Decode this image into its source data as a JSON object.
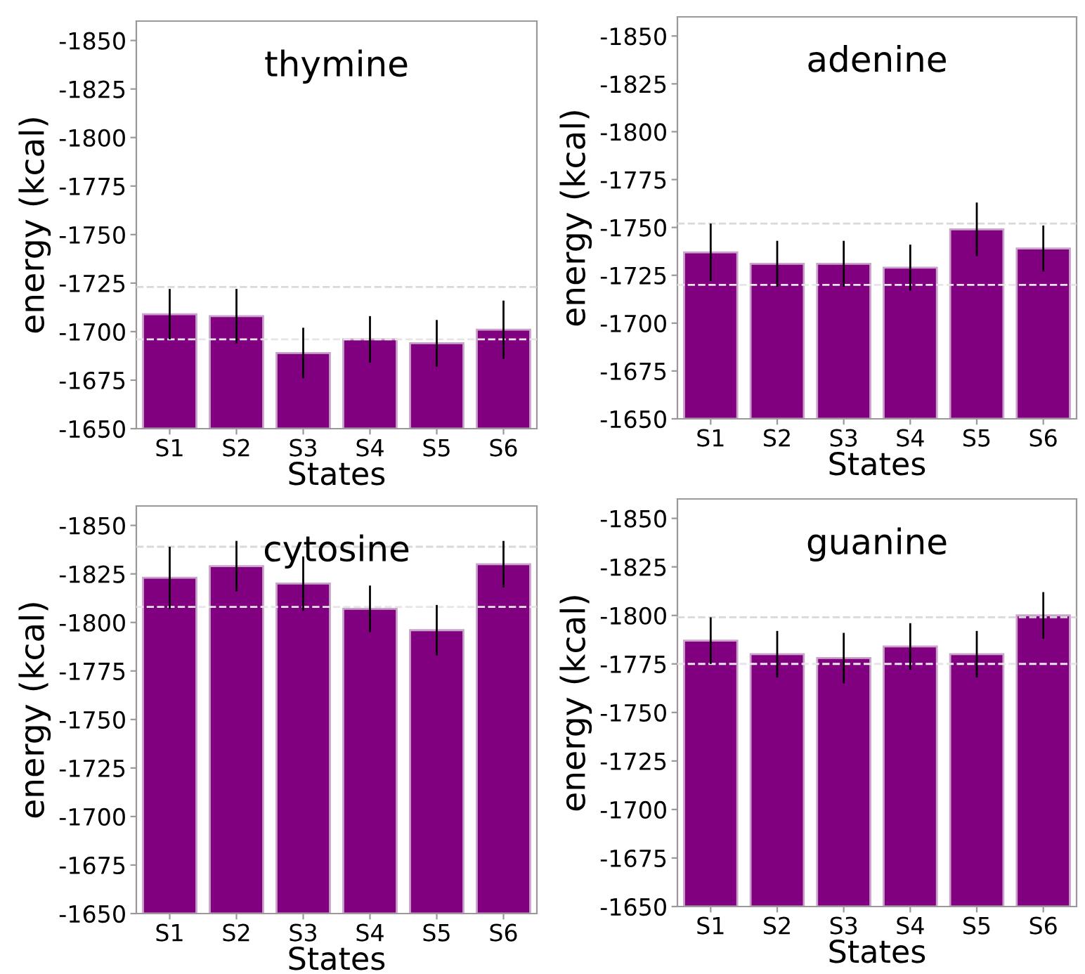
{
  "chart_data": [
    {
      "type": "bar",
      "title": "thymine",
      "xlabel": "States",
      "ylabel": "energy (kcal)",
      "categories": [
        "S1",
        "S2",
        "S3",
        "S4",
        "S5",
        "S6"
      ],
      "color": "#800080",
      "values": [
        -1709,
        -1708,
        -1689,
        -1696,
        -1694,
        -1701
      ],
      "errors": [
        13,
        14,
        13,
        12,
        12,
        15
      ],
      "ylim": [
        -1650,
        -1860
      ],
      "yticks": [
        -1650,
        -1675,
        -1700,
        -1725,
        -1750,
        -1775,
        -1800,
        -1825,
        -1850
      ],
      "ref_lines": [
        {
          "axis": "y",
          "value": -1723,
          "color": "#d9d9d9",
          "line_style": "dashed"
        },
        {
          "axis": "y",
          "value": -1696,
          "color": "#e6e6e6",
          "line_style": "dashed"
        }
      ]
    },
    {
      "type": "bar",
      "title": "adenine",
      "xlabel": "States",
      "ylabel": "energy (kcal)",
      "categories": [
        "S1",
        "S2",
        "S3",
        "S4",
        "S5",
        "S6"
      ],
      "color": "#800080",
      "values": [
        -1737,
        -1731,
        -1731,
        -1729,
        -1749,
        -1739
      ],
      "errors": [
        15,
        12,
        12,
        12,
        14,
        12
      ],
      "ylim": [
        -1650,
        -1860
      ],
      "yticks": [
        -1650,
        -1675,
        -1700,
        -1725,
        -1750,
        -1775,
        -1800,
        -1825,
        -1850
      ],
      "ref_lines": [
        {
          "axis": "y",
          "value": -1752,
          "color": "#d9d9d9",
          "line_style": "dashed"
        },
        {
          "axis": "y",
          "value": -1720,
          "color": "#e6e6e6",
          "line_style": "dashed"
        }
      ]
    },
    {
      "type": "bar",
      "title": "cytosine",
      "xlabel": "States",
      "ylabel": "energy (kcal)",
      "categories": [
        "S1",
        "S2",
        "S3",
        "S4",
        "S5",
        "S6"
      ],
      "color": "#800080",
      "values": [
        -1823,
        -1829,
        -1820,
        -1807,
        -1796,
        -1830
      ],
      "errors": [
        16,
        13,
        14,
        12,
        13,
        12
      ],
      "ylim": [
        -1650,
        -1860
      ],
      "yticks": [
        -1650,
        -1675,
        -1700,
        -1725,
        -1750,
        -1775,
        -1800,
        -1825,
        -1850
      ],
      "ref_lines": [
        {
          "axis": "y",
          "value": -1839,
          "color": "#d9d9d9",
          "line_style": "dashed"
        },
        {
          "axis": "y",
          "value": -1808,
          "color": "#e6e6e6",
          "line_style": "dashed"
        }
      ]
    },
    {
      "type": "bar",
      "title": "guanine",
      "xlabel": "States",
      "ylabel": "energy (kcal)",
      "categories": [
        "S1",
        "S2",
        "S3",
        "S4",
        "S5",
        "S6"
      ],
      "color": "#800080",
      "values": [
        -1787,
        -1780,
        -1778,
        -1784,
        -1780,
        -1800
      ],
      "errors": [
        12,
        12,
        13,
        12,
        12,
        12
      ],
      "ylim": [
        -1650,
        -1860
      ],
      "yticks": [
        -1650,
        -1675,
        -1700,
        -1725,
        -1750,
        -1775,
        -1800,
        -1825,
        -1850
      ],
      "ref_lines": [
        {
          "axis": "y",
          "value": -1799,
          "color": "#d9d9d9",
          "line_style": "dashed"
        },
        {
          "axis": "y",
          "value": -1775,
          "color": "#e6e6e6",
          "line_style": "dashed"
        }
      ]
    }
  ]
}
